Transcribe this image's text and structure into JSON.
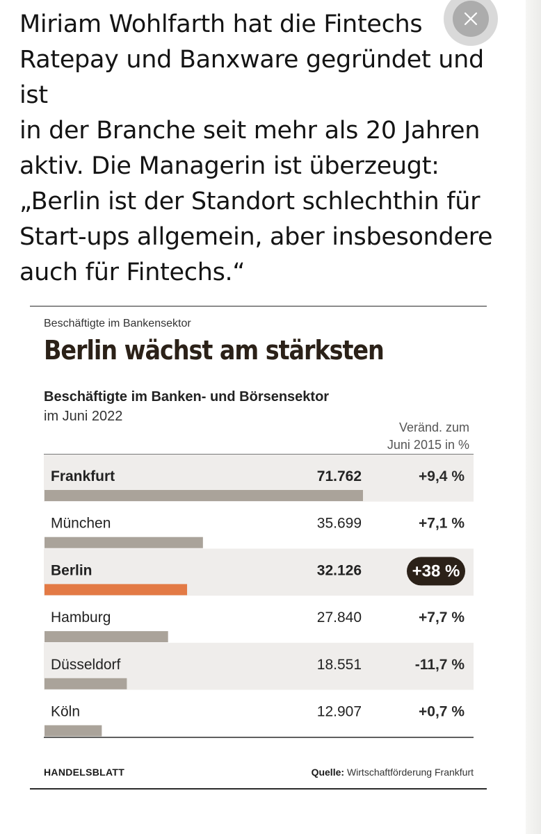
{
  "article": {
    "lines": [
      "Miriam Wohlfarth hat die Fintechs",
      "Ratepay und Banxware gegründet und ist",
      "in der Branche seit mehr als 20 Jahren",
      "aktiv. Die Managerin ist überzeugt:",
      "„Berlin ist der Standort schlechthin für",
      "Start-ups allgemein, aber insbesondere",
      "auch für Fintechs.“"
    ]
  },
  "close_icon": "close-icon",
  "graphic": {
    "kicker": "Beschäftigte im Bankensektor",
    "headline": "Berlin wächst am stärksten",
    "subtitle": "Beschäftigte im Banken- und Börsensektor",
    "subtitle2": "im Juni 2022",
    "column_note_1": "Veränd. zum",
    "column_note_2": "Juni 2015 in %",
    "source_brand": "HANDELSBLATT",
    "source_label": "Quelle:",
    "source_text": "Wirtschaftförderung Frankfurt"
  },
  "chart_data": {
    "type": "bar",
    "title": "Berlin wächst am stärksten",
    "subtitle": "Beschäftigte im Banken- und Börsensektor im Juni 2022",
    "categories": [
      "Frankfurt",
      "München",
      "Berlin",
      "Hamburg",
      "Düsseldorf",
      "Köln"
    ],
    "values": [
      71762,
      35699,
      32126,
      27840,
      18551,
      12907
    ],
    "value_labels": [
      "71.762",
      "35.699",
      "32.126",
      "27.840",
      "18.551",
      "12.907"
    ],
    "change_labels": [
      "+9,4 %",
      "+7,1 %",
      "+38 %",
      "+7,7 %",
      "-11,7 %",
      "+0,7 %"
    ],
    "change_values": [
      9.4,
      7.1,
      38,
      7.7,
      -11.7,
      0.7
    ],
    "highlight": "Berlin",
    "bold_rows": [
      "Frankfurt",
      "Berlin"
    ],
    "colors": {
      "bar": "#aaa39a",
      "highlight_bar": "#e37a45",
      "row_shade": "#efedeb",
      "badge": "#2b2118",
      "rule": "#2a2a2a"
    },
    "xlim": [
      0,
      71762
    ]
  }
}
